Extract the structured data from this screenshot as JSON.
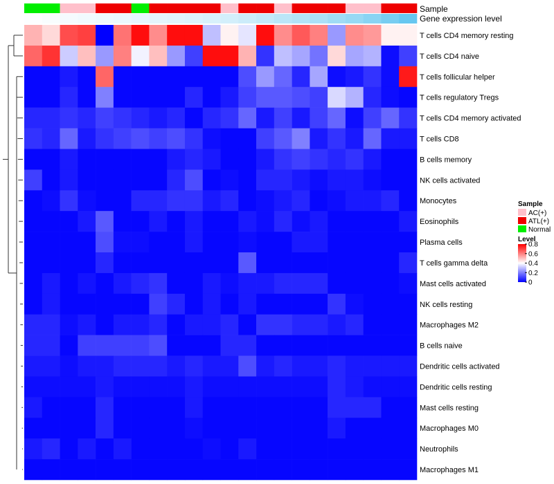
{
  "chart_data": {
    "type": "heatmap",
    "annotation_labels": {
      "sample": "Sample",
      "gene": "Gene expression level"
    },
    "columns": {
      "sample": [
        "Normal",
        "Normal",
        "AC(+)",
        "AC(+)",
        "ATL(+)",
        "ATL(+)",
        "Normal",
        "ATL(+)",
        "ATL(+)",
        "ATL(+)",
        "ATL(+)",
        "AC(+)",
        "ATL(+)",
        "ATL(+)",
        "AC(+)",
        "ATL(+)",
        "ATL(+)",
        "ATL(+)",
        "AC(+)",
        "AC(+)",
        "ATL(+)",
        "ATL(+)"
      ],
      "gene_level": [
        0.02,
        0.04,
        0.06,
        0.08,
        0.1,
        0.12,
        0.14,
        0.16,
        0.18,
        0.2,
        0.23,
        0.26,
        0.3,
        0.35,
        0.4,
        0.45,
        0.5,
        0.56,
        0.62,
        0.7,
        0.8,
        0.9
      ]
    },
    "rows": [
      "T cells CD4 memory resting",
      "T cells CD4 naive",
      "T cells follicular helper",
      "T cells regulatory  Tregs",
      "T cells CD4 memory activated",
      "T cells CD8",
      "B cells memory",
      "NK cells activated",
      "Monocytes",
      "Eosinophils",
      "Plasma cells",
      "T cells gamma delta",
      "Mast cells activated",
      "NK cells resting",
      "Macrophages M2",
      "B cells naive",
      "Dendritic cells activated",
      "Dendritic cells resting",
      "Mast cells resting",
      "Macrophages M0",
      "Neutrophils",
      "Macrophages M1"
    ],
    "values": [
      [
        0.52,
        0.46,
        0.68,
        0.7,
        0.0,
        0.62,
        0.78,
        0.58,
        0.78,
        0.78,
        0.3,
        0.42,
        0.36,
        0.78,
        0.58,
        0.66,
        0.6,
        0.24,
        0.58,
        0.56,
        0.42,
        0.42
      ],
      [
        0.64,
        0.72,
        0.32,
        0.5,
        0.24,
        0.6,
        0.38,
        0.5,
        0.24,
        0.1,
        0.78,
        0.78,
        0.52,
        0.08,
        0.3,
        0.26,
        0.18,
        0.46,
        0.26,
        0.28,
        0.02,
        0.1
      ],
      [
        0.01,
        0.01,
        0.04,
        0.01,
        0.64,
        0.01,
        0.01,
        0.01,
        0.01,
        0.01,
        0.01,
        0.01,
        0.12,
        0.24,
        0.16,
        0.06,
        0.26,
        0.02,
        0.04,
        0.08,
        0.02,
        0.76
      ],
      [
        0.01,
        0.01,
        0.06,
        0.01,
        0.2,
        0.01,
        0.01,
        0.01,
        0.01,
        0.06,
        0.01,
        0.04,
        0.1,
        0.14,
        0.14,
        0.12,
        0.1,
        0.34,
        0.28,
        0.06,
        0.02,
        0.01
      ],
      [
        0.06,
        0.06,
        0.08,
        0.06,
        0.1,
        0.08,
        0.06,
        0.04,
        0.06,
        0.01,
        0.06,
        0.08,
        0.16,
        0.04,
        0.1,
        0.04,
        0.1,
        0.16,
        0.02,
        0.1,
        0.16,
        0.08
      ],
      [
        0.08,
        0.06,
        0.16,
        0.04,
        0.08,
        0.1,
        0.12,
        0.1,
        0.12,
        0.08,
        0.02,
        0.01,
        0.01,
        0.1,
        0.14,
        0.2,
        0.04,
        0.08,
        0.04,
        0.16,
        0.04,
        0.04
      ],
      [
        0.01,
        0.01,
        0.04,
        0.01,
        0.01,
        0.01,
        0.01,
        0.01,
        0.04,
        0.06,
        0.04,
        0.01,
        0.01,
        0.04,
        0.08,
        0.1,
        0.08,
        0.06,
        0.08,
        0.04,
        0.01,
        0.01
      ],
      [
        0.1,
        0.01,
        0.04,
        0.01,
        0.01,
        0.01,
        0.01,
        0.01,
        0.06,
        0.12,
        0.01,
        0.02,
        0.01,
        0.06,
        0.06,
        0.04,
        0.02,
        0.04,
        0.04,
        0.02,
        0.01,
        0.01
      ],
      [
        0.01,
        0.02,
        0.08,
        0.02,
        0.01,
        0.01,
        0.06,
        0.06,
        0.08,
        0.08,
        0.04,
        0.06,
        0.01,
        0.02,
        0.04,
        0.06,
        0.01,
        0.02,
        0.04,
        0.04,
        0.06,
        0.01
      ],
      [
        0.01,
        0.01,
        0.01,
        0.04,
        0.14,
        0.01,
        0.01,
        0.04,
        0.01,
        0.04,
        0.01,
        0.01,
        0.04,
        0.02,
        0.06,
        0.02,
        0.04,
        0.01,
        0.01,
        0.01,
        0.01,
        0.04
      ],
      [
        0.01,
        0.01,
        0.01,
        0.01,
        0.12,
        0.02,
        0.02,
        0.01,
        0.01,
        0.04,
        0.01,
        0.01,
        0.02,
        0.01,
        0.01,
        0.04,
        0.04,
        0.01,
        0.01,
        0.01,
        0.01,
        0.01
      ],
      [
        0.01,
        0.01,
        0.01,
        0.01,
        0.06,
        0.01,
        0.01,
        0.01,
        0.01,
        0.01,
        0.01,
        0.01,
        0.14,
        0.01,
        0.01,
        0.01,
        0.01,
        0.01,
        0.01,
        0.01,
        0.01,
        0.06
      ],
      [
        0.01,
        0.04,
        0.01,
        0.03,
        0.01,
        0.04,
        0.06,
        0.08,
        0.01,
        0.01,
        0.04,
        0.02,
        0.04,
        0.04,
        0.06,
        0.06,
        0.06,
        0.01,
        0.01,
        0.01,
        0.01,
        0.02
      ],
      [
        0.01,
        0.04,
        0.01,
        0.01,
        0.01,
        0.01,
        0.01,
        0.1,
        0.06,
        0.01,
        0.04,
        0.01,
        0.04,
        0.01,
        0.01,
        0.01,
        0.01,
        0.08,
        0.02,
        0.01,
        0.01,
        0.01
      ],
      [
        0.06,
        0.06,
        0.02,
        0.04,
        0.01,
        0.04,
        0.04,
        0.06,
        0.01,
        0.04,
        0.04,
        0.06,
        0.01,
        0.08,
        0.08,
        0.06,
        0.06,
        0.04,
        0.06,
        0.01,
        0.01,
        0.01
      ],
      [
        0.06,
        0.06,
        0.01,
        0.1,
        0.1,
        0.1,
        0.1,
        0.12,
        0.01,
        0.01,
        0.01,
        0.06,
        0.06,
        0.01,
        0.01,
        0.01,
        0.01,
        0.01,
        0.01,
        0.01,
        0.01,
        0.01
      ],
      [
        0.04,
        0.04,
        0.02,
        0.04,
        0.04,
        0.06,
        0.06,
        0.06,
        0.04,
        0.06,
        0.04,
        0.04,
        0.12,
        0.04,
        0.06,
        0.04,
        0.04,
        0.06,
        0.04,
        0.04,
        0.04,
        0.04
      ],
      [
        0.02,
        0.02,
        0.02,
        0.02,
        0.04,
        0.02,
        0.02,
        0.02,
        0.02,
        0.04,
        0.02,
        0.02,
        0.02,
        0.02,
        0.02,
        0.02,
        0.02,
        0.06,
        0.04,
        0.02,
        0.02,
        0.02
      ],
      [
        0.04,
        0.01,
        0.01,
        0.01,
        0.06,
        0.01,
        0.01,
        0.01,
        0.01,
        0.04,
        0.01,
        0.01,
        0.01,
        0.01,
        0.01,
        0.01,
        0.01,
        0.06,
        0.06,
        0.06,
        0.01,
        0.01
      ],
      [
        0.01,
        0.01,
        0.01,
        0.01,
        0.06,
        0.01,
        0.01,
        0.01,
        0.01,
        0.02,
        0.01,
        0.01,
        0.01,
        0.01,
        0.01,
        0.01,
        0.01,
        0.04,
        0.01,
        0.01,
        0.01,
        0.01
      ],
      [
        0.04,
        0.06,
        0.01,
        0.04,
        0.01,
        0.04,
        0.01,
        0.01,
        0.01,
        0.01,
        0.02,
        0.01,
        0.04,
        0.01,
        0.01,
        0.01,
        0.01,
        0.01,
        0.01,
        0.01,
        0.01,
        0.01
      ],
      [
        0.01,
        0.01,
        0.01,
        0.01,
        0.01,
        0.01,
        0.01,
        0.01,
        0.01,
        0.01,
        0.01,
        0.01,
        0.01,
        0.01,
        0.01,
        0.01,
        0.01,
        0.01,
        0.01,
        0.01,
        0.01,
        0.01
      ]
    ],
    "legend": {
      "sample_title": "Sample",
      "sample_items": [
        {
          "label": "AC(+)",
          "color": "#FFC0CB"
        },
        {
          "label": "ATL(+)",
          "color": "#EE0000"
        },
        {
          "label": "Normal",
          "color": "#00EE00"
        }
      ],
      "level_title": "Level",
      "level_ticks": [
        {
          "value": 0.8,
          "label": "0.8"
        },
        {
          "value": 0.6,
          "label": "0.6"
        },
        {
          "value": 0.4,
          "label": "0.4"
        },
        {
          "value": 0.2,
          "label": "0.2"
        },
        {
          "value": 0,
          "label": "0"
        }
      ],
      "level_range": [
        0,
        0.8
      ]
    },
    "colors": {
      "low": "#0000FF",
      "mid": "#FFFFFF",
      "high": "#FF0000"
    },
    "gene_colors": {
      "low": "#FFFFFF",
      "high": "#56C1EE"
    }
  }
}
